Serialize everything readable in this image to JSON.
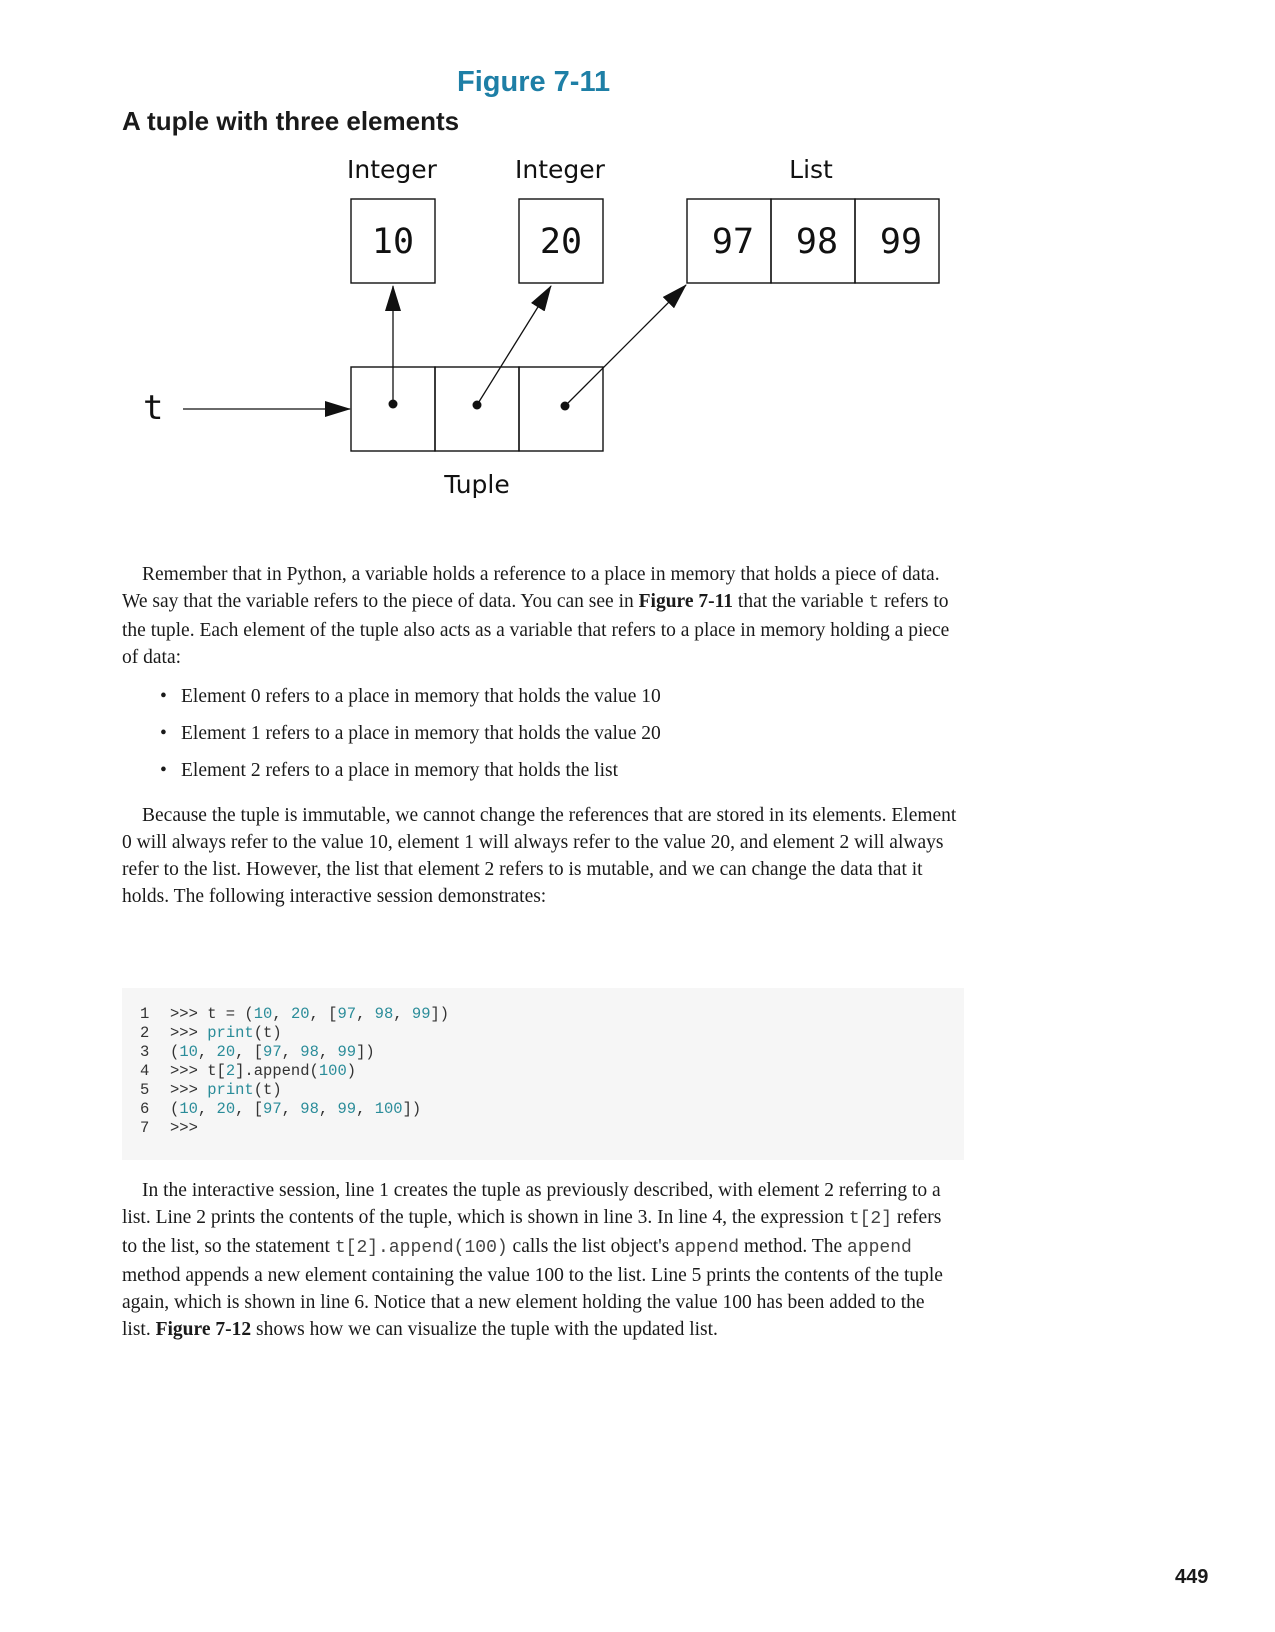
{
  "figure": {
    "number": "Figure 7-11",
    "title": "A tuple with three elements",
    "labels": {
      "integer_1": "Integer",
      "integer_2": "Integer",
      "list": "List",
      "tuple": "Tuple",
      "variable": "t"
    },
    "values": {
      "int_1": "10",
      "int_2": "20",
      "list_items": [
        "97",
        "98",
        "99"
      ]
    }
  },
  "body": {
    "p1": {
      "a": "Remember that in Python, a variable holds a reference to a place in memory that holds a piece of data. We say that the variable refers to the piece of data. You can see in ",
      "b": "Figure 7-11",
      "c": " that the variable ",
      "d": "t",
      "e": " refers to the tuple. Each element of the tuple also acts as a variable that refers to a place in memory holding a piece of data:"
    },
    "bullets": [
      "Element 0 refers to a place in memory that holds the value 10",
      "Element 1 refers to a place in memory that holds the value 20",
      "Element 2 refers to a place in memory that holds the list"
    ],
    "p2": "Because the tuple is immutable, we cannot change the references that are stored in its elements. Element 0 will always refer to the value 10, element 1 will always refer to the value 20, and element 2 will always refer to the list. However, the list that element 2 refers to is mutable, and we can change the data that it holds. The following interactive session demonstrates:",
    "p3": {
      "a": "In the interactive session, line 1 creates the tuple as previously described, with element 2 referring to a list. Line 2 prints the contents of the tuple, which is shown in line 3. In line 4, the expression ",
      "b": "t[2]",
      "c": " refers to the list, so the statement ",
      "d": "t[2].append(100)",
      "e": " calls the list object's ",
      "f": "append",
      "g": " method. The ",
      "h": "append",
      "i": " method appends a new element containing the value 100 to the list. Line 5 prints the contents of the tuple again, which is shown in line 6. Notice that a new element holding the value 100 has been added to the list. ",
      "j": "Figure 7-12",
      "k": " shows how we can visualize the tuple with the updated list."
    }
  },
  "code": {
    "line_numbers": [
      "1",
      "2",
      "3",
      "4",
      "5",
      "6",
      "7"
    ],
    "lines": [
      ">>> t = (10, 20, [97, 98, 99])",
      ">>> print(t)",
      "(10, 20, [97, 98, 99])",
      ">>> t[2].append(100)",
      ">>> print(t)",
      "(10, 20, [97, 98, 99, 100])",
      ">>>"
    ]
  },
  "page_number": "449"
}
